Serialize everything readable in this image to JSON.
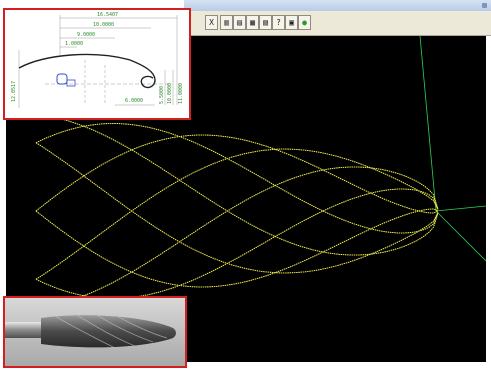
{
  "toolbar": {
    "buttons": [
      "X",
      "▥",
      "▤",
      "▦",
      "▧",
      "?",
      "▣",
      "●"
    ]
  },
  "cad_profile": {
    "dimensions": {
      "top_horizontal": "16.5407",
      "horizontal_2": "10.0000",
      "horizontal_3": "9.0000",
      "horizontal_4": "1.0000",
      "left_vertical": "12.0517",
      "right_vertical_1": "5.5000",
      "right_vertical_2": "10.0000",
      "right_vertical_3": "11.0000",
      "bottom": "6.0000"
    }
  },
  "colors": {
    "wireframe": "#e6e24a",
    "axis": "#2bd35a",
    "inset_border": "#d02020",
    "dimension_text": "#2a8a2a"
  }
}
